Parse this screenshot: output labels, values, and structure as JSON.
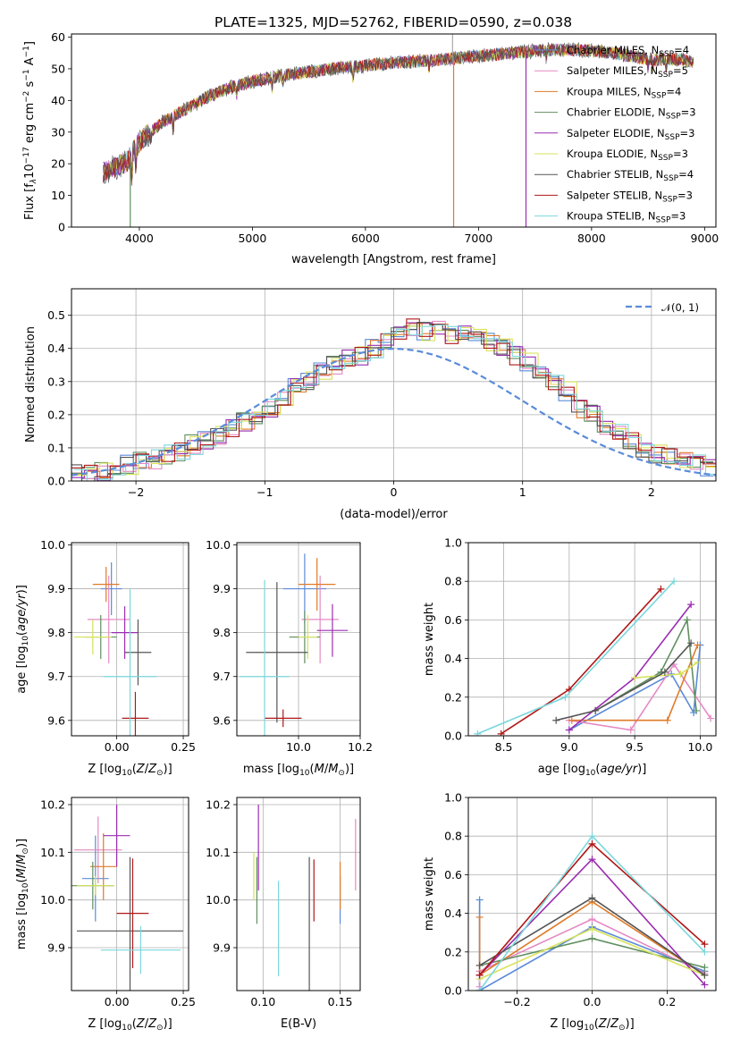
{
  "colors": [
    "#5b8bd9",
    "#e58ac3",
    "#e07b28",
    "#5f8f5f",
    "#9a2cb0",
    "#d7e35a",
    "#555555",
    "#b01818",
    "#7ad7dc"
  ],
  "legend_names": [
    "Chabrier MILES, N",
    "Salpeter MILES, N",
    "Kroupa MILES, N",
    "Chabrier ELODIE, N",
    "Salpeter ELODIE, N",
    "Kroupa ELODIE, N",
    "Chabrier STELIB, N",
    "Salpeter STELIB, N",
    "Kroupa STELIB, N"
  ],
  "legend_nssp": [
    "=4",
    "=5",
    "=4",
    "=3",
    "=3",
    "=3",
    "=4",
    "=3",
    "=3"
  ],
  "nssp_sub": "SSP",
  "chart_data": [
    {
      "id": "spectrum",
      "type": "line",
      "title": "PLATE=1325, MJD=52762, FIBERID=0590, z=0.038",
      "xlabel": "wavelength [Angstrom, rest frame]",
      "ylabel": "Flux [f",
      "xlim": [
        3400,
        9100
      ],
      "ylim": [
        0,
        61
      ],
      "xticks": [
        4000,
        5000,
        6000,
        7000,
        8000,
        9000
      ],
      "yticks": [
        0,
        10,
        20,
        30,
        40,
        50,
        60
      ],
      "continuum": [
        [
          3680,
          17
        ],
        [
          3900,
          21
        ],
        [
          4000,
          27
        ],
        [
          4200,
          33
        ],
        [
          4400,
          37
        ],
        [
          4600,
          41
        ],
        [
          4800,
          44
        ],
        [
          5000,
          46
        ],
        [
          5200,
          47.5
        ],
        [
          5400,
          48.5
        ],
        [
          5600,
          49.5
        ],
        [
          5800,
          50.5
        ],
        [
          6000,
          51
        ],
        [
          6300,
          52
        ],
        [
          6500,
          52.5
        ],
        [
          6700,
          53
        ],
        [
          7000,
          54
        ],
        [
          7300,
          55
        ],
        [
          7600,
          56
        ],
        [
          7900,
          56
        ],
        [
          8200,
          55
        ],
        [
          8500,
          53
        ],
        [
          8800,
          53
        ],
        [
          8900,
          52
        ]
      ],
      "dropouts": [
        [
          3920,
          0,
          20,
          3
        ],
        [
          6780,
          0,
          53,
          2
        ],
        [
          7420,
          0,
          55,
          4
        ]
      ],
      "grid": false,
      "legend": "top-right"
    },
    {
      "id": "residuals",
      "type": "histogram",
      "xlabel": "(data-model)/error",
      "ylabel": "Normed distribution",
      "xlim": [
        -2.5,
        2.5
      ],
      "ylim": [
        0,
        0.58
      ],
      "xticks": [
        -2,
        -1,
        0,
        1,
        2
      ],
      "yticks": [
        0.0,
        0.1,
        0.2,
        0.3,
        0.4,
        0.5
      ],
      "bin_start": -2.5,
      "bin_width": 0.1,
      "base_bins": [
        0.02,
        0.025,
        0.03,
        0.04,
        0.05,
        0.06,
        0.065,
        0.08,
        0.09,
        0.11,
        0.12,
        0.14,
        0.16,
        0.18,
        0.2,
        0.22,
        0.25,
        0.28,
        0.3,
        0.33,
        0.35,
        0.37,
        0.38,
        0.4,
        0.42,
        0.44,
        0.46,
        0.45,
        0.47,
        0.44,
        0.45,
        0.44,
        0.42,
        0.4,
        0.38,
        0.36,
        0.34,
        0.3,
        0.27,
        0.22,
        0.2,
        0.17,
        0.15,
        0.12,
        0.1,
        0.08,
        0.07,
        0.06,
        0.05,
        0.04
      ],
      "normal_label": "𝒩(0, 1)",
      "grid": true,
      "legend": "top-right"
    },
    {
      "id": "age-vs-Z",
      "type": "errorbar",
      "xlabel": "Z [log",
      "ylabel": "age  [log",
      "xlim": [
        -0.17,
        0.27
      ],
      "ylim": [
        9.565,
        10.005
      ],
      "xticks": [
        0.0,
        0.25
      ],
      "yticks": [
        9.6,
        9.7,
        9.8,
        9.9,
        10.0
      ],
      "points": [
        [
          -0.02,
          0.04,
          9.9,
          0.06
        ],
        [
          -0.03,
          0.08,
          9.83,
          0.1
        ],
        [
          -0.04,
          0.05,
          9.91,
          0.04
        ],
        [
          -0.06,
          0.06,
          9.79,
          0.05
        ],
        [
          0.03,
          0.05,
          9.8,
          0.06
        ],
        [
          -0.09,
          0.07,
          9.79,
          0.04
        ],
        [
          0.08,
          0.05,
          9.755,
          0.075
        ],
        [
          0.07,
          0.05,
          9.605,
          0.06
        ],
        [
          0.05,
          0.1,
          9.7,
          0.2
        ]
      ],
      "grid": true
    },
    {
      "id": "age-vs-mass",
      "type": "errorbar",
      "xlabel": "mass [log",
      "ylabel": "",
      "xlim": [
        9.8,
        10.2
      ],
      "ylim": [
        9.565,
        10.005
      ],
      "xticks": [
        10.0,
        10.2
      ],
      "yticks": [
        9.6,
        9.7,
        9.8,
        9.9,
        10.0
      ],
      "points": [
        [
          10.02,
          0.07,
          9.9,
          0.08
        ],
        [
          10.07,
          0.06,
          9.83,
          0.1
        ],
        [
          10.06,
          0.06,
          9.91,
          0.06
        ],
        [
          10.02,
          0.05,
          9.79,
          0.06
        ],
        [
          10.11,
          0.05,
          9.805,
          0.06
        ],
        [
          10.03,
          0.03,
          9.79,
          0.05
        ],
        [
          9.93,
          0.1,
          9.755,
          0.16
        ],
        [
          9.95,
          0.06,
          9.605,
          0.02
        ],
        [
          9.89,
          0.08,
          9.7,
          0.22
        ]
      ],
      "grid": true
    },
    {
      "id": "weight-vs-age",
      "type": "line",
      "xlabel": "age  [log",
      "ylabel": "mass weight",
      "xlim": [
        8.23,
        10.12
      ],
      "ylim": [
        0,
        1
      ],
      "xticks": [
        8.5,
        9.0,
        9.5,
        10.0
      ],
      "yticks": [
        0.0,
        0.2,
        0.4,
        0.6,
        0.8,
        1.0
      ],
      "series": [
        {
          "x": [
            9.0,
            9.78,
            9.95,
            10.0
          ],
          "y": [
            0.03,
            0.32,
            0.12,
            0.47
          ]
        },
        {
          "x": [
            9.0,
            9.47,
            9.8,
            10.08
          ],
          "y": [
            0.08,
            0.03,
            0.37,
            0.09
          ]
        },
        {
          "x": [
            9.02,
            9.75,
            9.98
          ],
          "y": [
            0.08,
            0.08,
            0.47
          ]
        },
        {
          "x": [
            9.2,
            9.7,
            9.9,
            9.97
          ],
          "y": [
            0.13,
            0.33,
            0.6,
            0.13
          ]
        },
        {
          "x": [
            9.0,
            9.5,
            9.93
          ],
          "y": [
            0.03,
            0.3,
            0.68
          ]
        },
        {
          "x": [
            9.5,
            9.85,
            9.98
          ],
          "y": [
            0.3,
            0.32,
            0.38
          ]
        },
        {
          "x": [
            8.9,
            9.2,
            9.73,
            9.93
          ],
          "y": [
            0.08,
            0.13,
            0.33,
            0.48
          ]
        },
        {
          "x": [
            8.48,
            9.0,
            9.7
          ],
          "y": [
            0.01,
            0.24,
            0.76
          ]
        },
        {
          "x": [
            8.3,
            8.97,
            9.8
          ],
          "y": [
            0.01,
            0.2,
            0.8
          ]
        }
      ],
      "grid": true
    },
    {
      "id": "mass-vs-Z",
      "type": "errorbar",
      "xlabel": "Z [log",
      "ylabel": "mass [log",
      "xlim": [
        -0.17,
        0.27
      ],
      "ylim": [
        9.81,
        10.215
      ],
      "xticks": [
        0.0,
        0.25
      ],
      "yticks": [
        9.9,
        10.0,
        10.1,
        10.2
      ],
      "points": [
        [
          -0.08,
          0.05,
          10.045,
          0.09
        ],
        [
          -0.07,
          0.09,
          10.105,
          0.07
        ],
        [
          -0.05,
          0.05,
          10.07,
          0.07
        ],
        [
          -0.09,
          0.08,
          10.03,
          0.05
        ],
        [
          0.0,
          0.05,
          10.135,
          0.065
        ],
        [
          -0.08,
          0.07,
          10.03,
          0.02
        ],
        [
          0.05,
          0.2,
          9.935,
          0.155
        ],
        [
          0.06,
          0.06,
          9.972,
          0.115
        ],
        [
          0.09,
          0.15,
          9.895,
          0.05
        ]
      ],
      "grid": true
    },
    {
      "id": "mass-vs-ebv",
      "type": "errorbar",
      "xlabel": "E(B-V)",
      "ylabel": "",
      "xlim": [
        0.083,
        0.163
      ],
      "ylim": [
        9.81,
        10.215
      ],
      "xticks": [
        0.1,
        0.15
      ],
      "yticks": [
        9.9,
        10.0,
        10.1,
        10.2
      ],
      "points": [
        [
          0.15,
          0,
          10.0,
          0.05
        ],
        [
          0.16,
          0,
          10.095,
          0.075
        ],
        [
          0.15,
          0,
          10.03,
          0.05
        ],
        [
          0.096,
          0,
          10.02,
          0.07
        ],
        [
          0.097,
          0,
          10.11,
          0.09
        ],
        [
          0.094,
          0,
          10.05,
          0.05
        ],
        [
          0.13,
          0,
          9.94,
          0.15
        ],
        [
          0.133,
          0,
          10.02,
          0.065
        ],
        [
          0.11,
          0,
          9.94,
          0.1
        ]
      ],
      "grid": true
    },
    {
      "id": "weight-vs-Z",
      "type": "line",
      "xlabel": "Z [log",
      "ylabel": "mass weight",
      "xlim": [
        -0.33,
        0.33
      ],
      "ylim": [
        0,
        1
      ],
      "xticks": [
        -0.2,
        0.0,
        0.2
      ],
      "yticks": [
        0.0,
        0.2,
        0.4,
        0.6,
        0.8,
        1.0
      ],
      "series": [
        {
          "x": [
            -0.3,
            -0.3,
            0.0,
            0.3
          ],
          "y": [
            0.47,
            0.0,
            0.33,
            0.1
          ]
        },
        {
          "x": [
            -0.3,
            -0.3,
            0.0,
            0.3
          ],
          "y": [
            0.02,
            0.1,
            0.37,
            0.09
          ]
        },
        {
          "x": [
            -0.3,
            -0.3,
            0.0,
            0.3
          ],
          "y": [
            0.38,
            0.08,
            0.46,
            0.08
          ]
        },
        {
          "x": [
            -0.3,
            0.0,
            0.3
          ],
          "y": [
            0.13,
            0.27,
            0.12
          ]
        },
        {
          "x": [
            -0.3,
            0.0,
            0.3
          ],
          "y": [
            0.08,
            0.68,
            0.03
          ]
        },
        {
          "x": [
            -0.3,
            0.0,
            0.3
          ],
          "y": [
            0.06,
            0.32,
            0.08
          ]
        },
        {
          "x": [
            -0.3,
            0.0,
            0.3
          ],
          "y": [
            0.13,
            0.48,
            0.08
          ]
        },
        {
          "x": [
            -0.3,
            0.0,
            0.3
          ],
          "y": [
            0.08,
            0.76,
            0.24
          ]
        },
        {
          "x": [
            -0.3,
            0.0,
            0.3
          ],
          "y": [
            0.0,
            0.8,
            0.2
          ]
        }
      ],
      "grid": true
    }
  ]
}
